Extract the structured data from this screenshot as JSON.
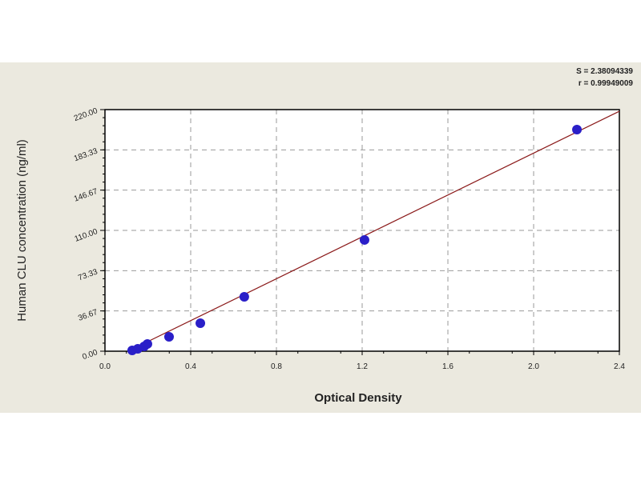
{
  "chart_data": {
    "type": "scatter",
    "title": "",
    "xlabel": "Optical Density",
    "ylabel": "Human CLU concentration (ng/ml)",
    "xlim": [
      0,
      2.4
    ],
    "ylim": [
      0,
      220
    ],
    "xticks": [
      "0.0",
      "0.4",
      "0.8",
      "1.2",
      "1.6",
      "2.0",
      "2.4"
    ],
    "xtick_values": [
      0,
      0.4,
      0.8,
      1.2,
      1.6,
      2.0,
      2.4
    ],
    "yticks": [
      "0.00",
      "36.67",
      "73.33",
      "110.00",
      "146.67",
      "183.33",
      "220.00"
    ],
    "ytick_values": [
      0,
      36.67,
      73.33,
      110,
      146.67,
      183.33,
      220
    ],
    "grid": true,
    "points": {
      "x": [
        0.127,
        0.153,
        0.183,
        0.198,
        0.299,
        0.445,
        0.65,
        1.211,
        2.202
      ],
      "y": [
        0.7,
        2.2,
        4.4,
        6.6,
        13.1,
        25.5,
        49.5,
        101.3,
        201.8
      ]
    },
    "fit_line": {
      "x": [
        0.108,
        2.4
      ],
      "y": [
        0,
        218.5
      ]
    },
    "annotations": [
      "S = 2.38094339",
      "r = 0.99949009"
    ],
    "colors": {
      "points": "#2a1fc8",
      "fit_line": "#8b1a1a",
      "grid": "#999999",
      "background": "#ebe9df"
    }
  }
}
